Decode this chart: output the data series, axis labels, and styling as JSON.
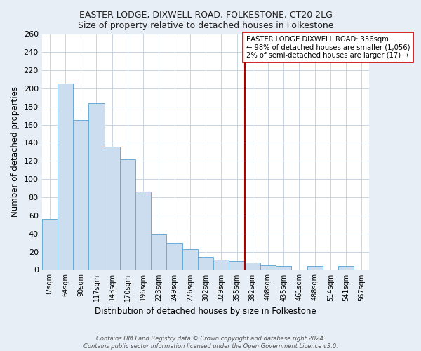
{
  "title1": "EASTER LODGE, DIXWELL ROAD, FOLKESTONE, CT20 2LG",
  "title2": "Size of property relative to detached houses in Folkestone",
  "xlabel": "Distribution of detached houses by size in Folkestone",
  "ylabel": "Number of detached properties",
  "categories": [
    "37sqm",
    "64sqm",
    "90sqm",
    "117sqm",
    "143sqm",
    "170sqm",
    "196sqm",
    "223sqm",
    "249sqm",
    "276sqm",
    "302sqm",
    "329sqm",
    "355sqm",
    "382sqm",
    "408sqm",
    "435sqm",
    "461sqm",
    "488sqm",
    "514sqm",
    "541sqm",
    "567sqm"
  ],
  "values": [
    56,
    205,
    165,
    184,
    136,
    122,
    86,
    39,
    30,
    23,
    14,
    11,
    10,
    8,
    5,
    4,
    0,
    4,
    0,
    4,
    0
  ],
  "bar_color": "#cdddf0",
  "bar_edge_color": "#6aaad4",
  "vline_x_index": 12,
  "vline_color": "#aa0000",
  "annotation_line1": "EASTER LODGE DIXWELL ROAD: 356sqm",
  "annotation_line2": "← 98% of detached houses are smaller (1,056)",
  "annotation_line3": "2% of semi-detached houses are larger (17) →",
  "ylim": [
    0,
    260
  ],
  "yticks": [
    0,
    20,
    40,
    60,
    80,
    100,
    120,
    140,
    160,
    180,
    200,
    220,
    240,
    260
  ],
  "footer_line1": "Contains HM Land Registry data © Crown copyright and database right 2024.",
  "footer_line2": "Contains public sector information licensed under the Open Government Licence v3.0.",
  "bg_color": "#e8eef5",
  "plot_bg_color": "#ffffff",
  "grid_color": "#c8d4e0",
  "title_color": "#222222",
  "annotation_border_color": "#cc0000"
}
